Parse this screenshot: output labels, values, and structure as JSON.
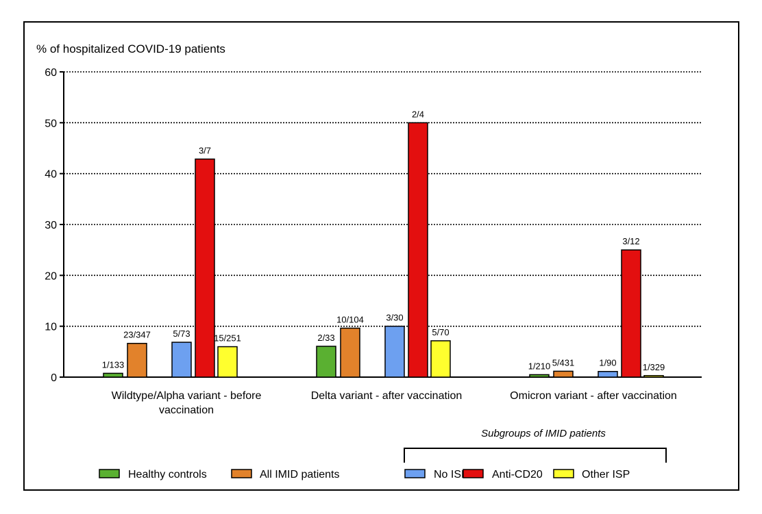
{
  "chart_data": {
    "type": "bar",
    "ylabel": "% of hospitalized COVID-19 patients",
    "ylim": [
      0,
      60
    ],
    "yticks": [
      0,
      10,
      20,
      30,
      40,
      50,
      60
    ],
    "grid": true,
    "categories": [
      [
        "Wildtype/Alpha variant - before",
        "vaccination"
      ],
      [
        "Delta variant - after vaccination"
      ],
      [
        "Omicron variant - after vaccination"
      ]
    ],
    "series": [
      {
        "name": "Healthy controls",
        "color": "#5ab031",
        "values": [
          0.75,
          6.06,
          0.48
        ],
        "labels": [
          "1/133",
          "2/33",
          "1/210"
        ]
      },
      {
        "name": "All IMID patients",
        "color": "#e2822b",
        "values": [
          6.63,
          9.62,
          1.16
        ],
        "labels": [
          "23/347",
          "10/104",
          "5/431"
        ]
      },
      {
        "name": "No ISP",
        "color": "#6da0f0",
        "values": [
          6.85,
          10.0,
          1.11
        ],
        "labels": [
          "5/73",
          "3/30",
          "1/90"
        ]
      },
      {
        "name": "Anti-CD20",
        "color": "#e30f0f",
        "values": [
          42.86,
          50.0,
          25.0
        ],
        "labels": [
          "3/7",
          "2/4",
          "3/12"
        ]
      },
      {
        "name": "Other ISP",
        "color": "#ffff2e",
        "values": [
          5.98,
          7.14,
          0.3
        ],
        "labels": [
          "15/251",
          "5/70",
          "1/329"
        ]
      }
    ],
    "legend_subgroup_title": "Subgroups of IMID patients",
    "legend_position": "bottom"
  }
}
